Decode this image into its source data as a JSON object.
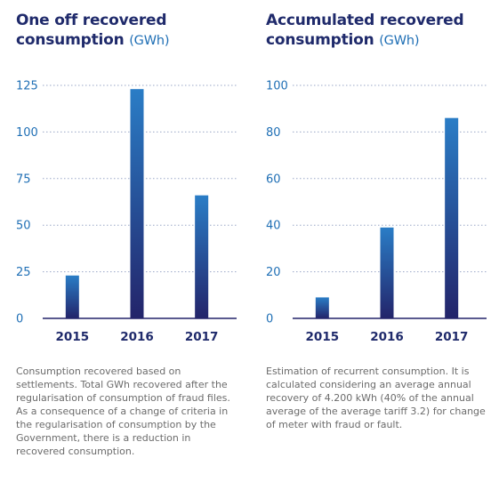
{
  "chart_data": [
    {
      "type": "bar",
      "title": "One off recovered consumption",
      "unit": "(GWh)",
      "categories": [
        "2015",
        "2016",
        "2017"
      ],
      "values": [
        23,
        123,
        66
      ],
      "yticks": [
        0,
        25,
        50,
        75,
        100,
        125
      ],
      "ylim": [
        0,
        125
      ],
      "grid": "horizontal dotted",
      "caption": "Consumption recovered based on settlements. Total GWh recovered after the regularisation of regularisation of consumption of fraud files. As a consequence of a change of criteria in the regularisation of consumption by the Government, there is a reduction in recovered consumption."
    },
    {
      "type": "bar",
      "title": "Accumulated recovered consumption",
      "unit": "(GWh)",
      "categories": [
        "2015",
        "2016",
        "2017"
      ],
      "values": [
        9,
        39,
        86
      ],
      "yticks": [
        0,
        20,
        40,
        60,
        80,
        100
      ],
      "ylim": [
        0,
        100
      ],
      "grid": "horizontal dotted",
      "caption": "Estimation of recurrent consumption. It is calculated considering an average annual recovery of 4.200 kWh (40% of the annual average of the average tariff 3.2) for change of meter with fraud or fault."
    }
  ],
  "colors": {
    "title": "#1f2a6b",
    "unit": "#1f6fb5",
    "tick": "#1f6fb5",
    "bar_top": "#2a7dc6",
    "bar_bottom": "#23246a",
    "grid": "#9aa7c7",
    "caption": "#6b6b6b"
  }
}
